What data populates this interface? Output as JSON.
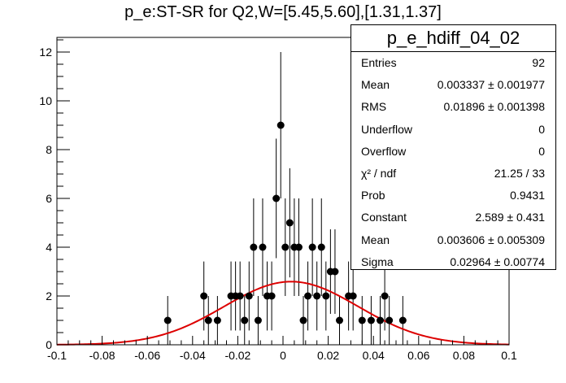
{
  "title": "p_e:ST-SR for Q2,W=[5.45,5.60],[1.31,1.37]",
  "stats": {
    "name": "p_e_hdiff_04_02",
    "rows": [
      {
        "label": "Entries",
        "value": "92"
      },
      {
        "label": "Mean",
        "value": "0.003337 ± 0.001977"
      },
      {
        "label": "RMS",
        "value": "0.01896 ± 0.001398"
      },
      {
        "label": "Underflow",
        "value": "0"
      },
      {
        "label": "Overflow",
        "value": "0"
      },
      {
        "label": "χ² / ndf",
        "value": "21.25 / 33"
      },
      {
        "label": "Prob",
        "value": "0.9431"
      },
      {
        "label": "Constant",
        "value": "2.589 ± 0.431"
      },
      {
        "label": "Mean",
        "value": "0.003606 ± 0.005309"
      },
      {
        "label": "Sigma",
        "value": "0.02964 ± 0.00774"
      }
    ]
  },
  "chart_data": {
    "type": "scatter",
    "title": "p_e:ST-SR for Q2,W=[5.45,5.60],[1.31,1.37]",
    "xlim": [
      -0.1,
      0.1
    ],
    "ylim": [
      0,
      12.6
    ],
    "x_ticks": [
      "-0.1",
      "-0.08",
      "-0.06",
      "-0.04",
      "-0.02",
      "0",
      "0.02",
      "0.04",
      "0.06",
      "0.08",
      "0.1"
    ],
    "y_ticks": [
      "0",
      "2",
      "4",
      "6",
      "8",
      "10",
      "12"
    ],
    "grid": false,
    "bin_width": 0.002,
    "series": [
      {
        "points": [
          {
            "x": -0.051,
            "y": 1
          },
          {
            "x": -0.035,
            "y": 2
          },
          {
            "x": -0.033,
            "y": 1
          },
          {
            "x": -0.029,
            "y": 1
          },
          {
            "x": -0.023,
            "y": 2
          },
          {
            "x": -0.021,
            "y": 2
          },
          {
            "x": -0.019,
            "y": 2
          },
          {
            "x": -0.017,
            "y": 1
          },
          {
            "x": -0.015,
            "y": 2
          },
          {
            "x": -0.013,
            "y": 4
          },
          {
            "x": -0.011,
            "y": 1
          },
          {
            "x": -0.009,
            "y": 4
          },
          {
            "x": -0.007,
            "y": 2
          },
          {
            "x": -0.005,
            "y": 2
          },
          {
            "x": -0.003,
            "y": 6
          },
          {
            "x": -0.001,
            "y": 9
          },
          {
            "x": 0.001,
            "y": 4
          },
          {
            "x": 0.003,
            "y": 5
          },
          {
            "x": 0.005,
            "y": 4
          },
          {
            "x": 0.007,
            "y": 4
          },
          {
            "x": 0.009,
            "y": 1
          },
          {
            "x": 0.011,
            "y": 2
          },
          {
            "x": 0.013,
            "y": 4
          },
          {
            "x": 0.015,
            "y": 2
          },
          {
            "x": 0.017,
            "y": 4
          },
          {
            "x": 0.019,
            "y": 2
          },
          {
            "x": 0.021,
            "y": 3
          },
          {
            "x": 0.023,
            "y": 3
          },
          {
            "x": 0.025,
            "y": 1
          },
          {
            "x": 0.029,
            "y": 2
          },
          {
            "x": 0.031,
            "y": 2
          },
          {
            "x": 0.035,
            "y": 1
          },
          {
            "x": 0.039,
            "y": 1
          },
          {
            "x": 0.043,
            "y": 1
          },
          {
            "x": 0.045,
            "y": 2
          },
          {
            "x": 0.047,
            "y": 1
          },
          {
            "x": 0.053,
            "y": 1
          }
        ]
      }
    ],
    "fit": {
      "function": "gaus",
      "constant": 2.589,
      "mean": 0.003606,
      "sigma": 0.02964,
      "color": "#dd0000"
    },
    "marker_color": "#000000"
  }
}
